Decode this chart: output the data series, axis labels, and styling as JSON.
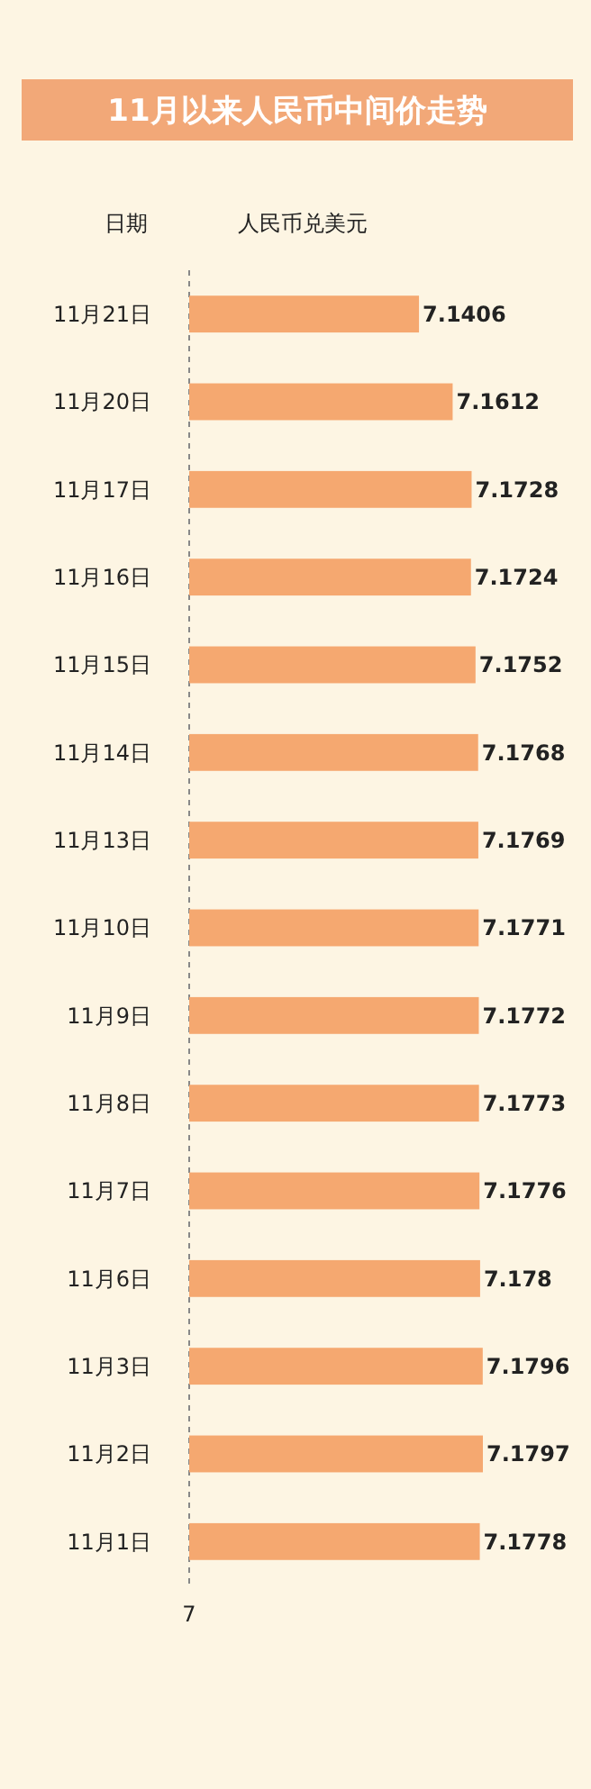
{
  "chart_data": {
    "type": "bar",
    "orientation": "horizontal",
    "title": "11月以来人民币中间价走势",
    "xlabel": "人民币兑美元",
    "ylabel": "日期",
    "categories": [
      "11月21日",
      "11月20日",
      "11月17日",
      "11月16日",
      "11月15日",
      "11月14日",
      "11月13日",
      "11月10日",
      "11月9日",
      "11月8日",
      "11月7日",
      "11月6日",
      "11月3日",
      "11月2日",
      "11月1日"
    ],
    "values": [
      7.1406,
      7.1612,
      7.1728,
      7.1724,
      7.1752,
      7.1768,
      7.1769,
      7.1771,
      7.1772,
      7.1773,
      7.1776,
      7.178,
      7.1796,
      7.1797,
      7.1778
    ],
    "color": "#f5a870",
    "xlim": [
      7,
      7.1797
    ],
    "annotations": [
      "7"
    ],
    "data_labels": true
  }
}
